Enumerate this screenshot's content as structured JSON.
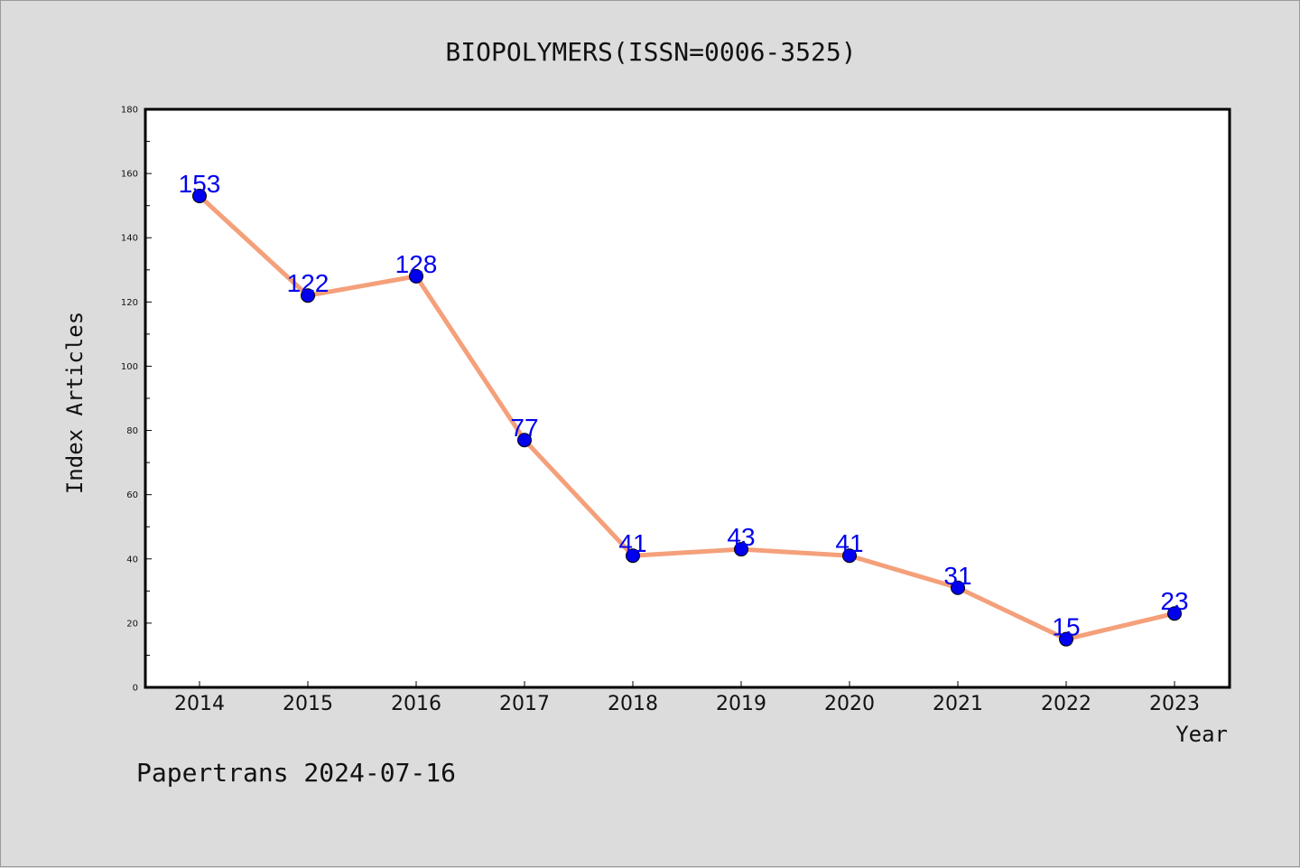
{
  "chart_data": {
    "type": "line",
    "title": "BIOPOLYMERS(ISSN=0006-3525)",
    "xlabel": "Year",
    "ylabel": "Index Articles",
    "categories": [
      "2014",
      "2015",
      "2016",
      "2017",
      "2018",
      "2019",
      "2020",
      "2021",
      "2022",
      "2023"
    ],
    "values": [
      153,
      122,
      128,
      77,
      41,
      43,
      41,
      31,
      15,
      23
    ],
    "ylim": [
      0,
      180
    ],
    "yticks": [
      "0",
      "20",
      "40",
      "60",
      "80",
      "100",
      "120",
      "140",
      "160",
      "180"
    ],
    "grid": false,
    "line_color": "#f4a07a",
    "marker_color": "#0000ee",
    "label_color": "#0000ee"
  },
  "footer": "Papertrans 2024-07-16"
}
